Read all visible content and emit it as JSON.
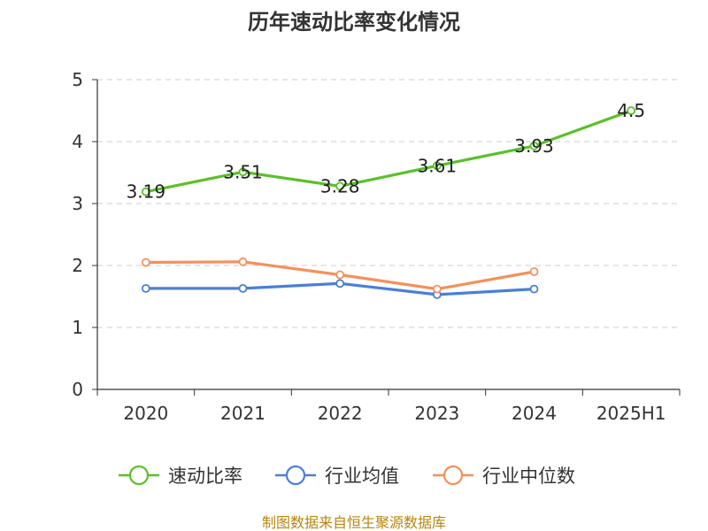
{
  "chart_data": {
    "type": "line",
    "title": "历年速动比率变化情况",
    "xlabel": "",
    "ylabel": "",
    "categories": [
      "2020",
      "2021",
      "2022",
      "2023",
      "2024",
      "2025H1"
    ],
    "ylim": [
      0,
      5
    ],
    "yticks": [
      "0",
      "1",
      "2",
      "3",
      "4",
      "5"
    ],
    "grid": true,
    "legend": "bottom",
    "series": [
      {
        "name": "速动比率",
        "color": "#5ac028",
        "values": [
          3.19,
          3.51,
          3.28,
          3.61,
          3.93,
          4.5
        ],
        "labels": [
          "3.19",
          "3.51",
          "3.28",
          "3.61",
          "3.93",
          "4.5"
        ]
      },
      {
        "name": "行业均值",
        "color": "#4a7fd8",
        "values": [
          1.63,
          1.63,
          1.71,
          1.53,
          1.62,
          null
        ]
      },
      {
        "name": "行业中位数",
        "color": "#f4905b",
        "values": [
          2.05,
          2.06,
          1.85,
          1.62,
          1.9,
          null
        ]
      }
    ]
  },
  "footer": {
    "source": "制图数据来自恒生聚源数据库"
  }
}
